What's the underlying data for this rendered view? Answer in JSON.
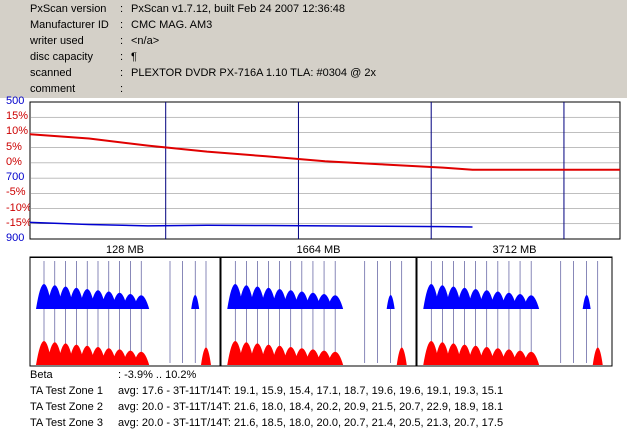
{
  "info": {
    "rows": [
      {
        "key": "PxScan version",
        "value": "PxScan v1.7.12, built Feb 24 2007 12:36:48"
      },
      {
        "key": "Manufacturer ID",
        "value": "CMC MAG. AM3"
      },
      {
        "key": "writer used",
        "value": "<n/a>"
      },
      {
        "key": "disc capacity",
        "value": "¶"
      },
      {
        "key": "scanned",
        "value": "PLEXTOR DVDR PX-716A 1.10 TLA: #0304 @ 2x"
      },
      {
        "key": "comment",
        "value": ""
      }
    ],
    "colon": ":"
  },
  "chart_data": {
    "type": "line",
    "left_axis_labels": [
      {
        "text": "500",
        "color": "#0000cc"
      },
      {
        "text": "15%",
        "color": "#cc0000"
      },
      {
        "text": "10%",
        "color": "#cc0000"
      },
      {
        "text": "5%",
        "color": "#cc0000"
      },
      {
        "text": "0%",
        "color": "#cc0000"
      },
      {
        "text": "700",
        "color": "#0000cc"
      },
      {
        "text": "-5%",
        "color": "#cc0000"
      },
      {
        "text": "-10%",
        "color": "#cc0000"
      },
      {
        "text": "-15%",
        "color": "#cc0000"
      },
      {
        "text": "900",
        "color": "#0000cc"
      }
    ],
    "series": [
      {
        "color": "#e00000",
        "x": [
          0,
          10,
          20,
          30,
          40,
          50,
          60,
          70,
          75,
          100
        ],
        "y": [
          10.2,
          9.0,
          7.0,
          5.3,
          4.0,
          2.6,
          1.7,
          0.8,
          0.2,
          0.2
        ]
      },
      {
        "color": "#0000d0",
        "x": [
          0,
          10,
          20,
          30,
          40,
          50,
          60,
          70,
          75
        ],
        "y": [
          -14.6,
          -15.2,
          -15.6,
          -15.4,
          -15.5,
          -15.6,
          -15.7,
          -15.8,
          -15.9
        ]
      }
    ],
    "colors": {
      "beta": "#e00000",
      "jitter": "#0000d0",
      "grid": "#00007f"
    }
  },
  "zones": [
    {
      "label": "128 MB"
    },
    {
      "label": "1664 MB"
    },
    {
      "label": "3712 MB"
    }
  ],
  "bottom": {
    "rows": [
      {
        "label": "Beta",
        "value": ": -3.9% .. 10.2%"
      },
      {
        "label": "TA Test Zone 1",
        "value": "avg: 17.6 - 3T-11T/14T: 19.1, 15.9, 15.4, 17.1, 18.7, 19.6, 19.6, 19.1, 19.3, 15.1"
      },
      {
        "label": "TA Test Zone 2",
        "value": "avg: 20.0 - 3T-11T/14T: 21.6, 18.0, 18.4, 20.2, 20.9, 21.5, 20.7, 22.9, 18.9, 18.1"
      },
      {
        "label": "TA Test Zone 3",
        "value": "avg: 20.0 - 3T-11T/14T: 21.6, 18.5, 18.0, 20.0, 20.7, 21.4, 20.5, 21.3, 20.7, 17.5"
      }
    ]
  }
}
